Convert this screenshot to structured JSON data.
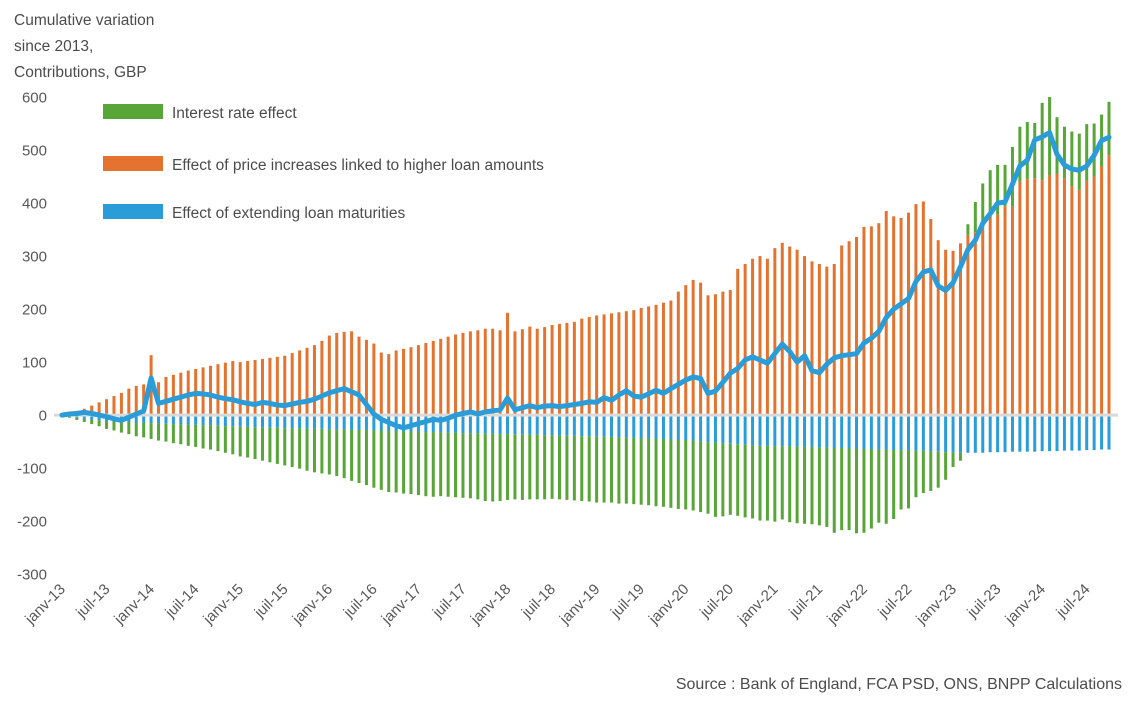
{
  "title_lines": [
    "Cumulative variation",
    "since 2013,",
    "Contributions, GBP"
  ],
  "source": "Source : Bank of England, FCA PSD, ONS, BNPP Calculations",
  "chart_data": {
    "type": "bar+line",
    "stacked": true,
    "x_start": "2013-01",
    "x_end": "2024-10",
    "n_points": 142,
    "x_tick_every": 6,
    "x_tick_labels": [
      "janv-13",
      "juil-13",
      "janv-14",
      "juil-14",
      "janv-15",
      "juil-15",
      "janv-16",
      "juil-16",
      "janv-17",
      "juil-17",
      "janv-18",
      "juil-18",
      "janv-19",
      "juil-19",
      "janv-20",
      "juil-20",
      "janv-21",
      "juil-21",
      "janv-22",
      "juil-22",
      "janv-23",
      "juil-23",
      "janv-24",
      "juil-24"
    ],
    "y_axis": {
      "min": -300,
      "max": 600,
      "step": 100
    },
    "zero_line_color": "#d9d9d9",
    "series": [
      {
        "id": "rate",
        "label": "Interest rate effect",
        "color": "#58a538",
        "type": "bar",
        "values": [
          -1,
          -2,
          -4,
          -6,
          -8,
          -11,
          -14,
          -17,
          -20,
          -23,
          -26,
          -28,
          -30,
          -32,
          -34,
          -36,
          -38,
          -40,
          -42,
          -44,
          -46,
          -48,
          -50,
          -53,
          -56,
          -58,
          -60,
          -63,
          -65,
          -68,
          -70,
          -73,
          -76,
          -79,
          -82,
          -84,
          -85,
          -88,
          -92,
          -96,
          -100,
          -104,
          -108,
          -112,
          -115,
          -116,
          -117,
          -118,
          -120,
          -121,
          -122,
          -121,
          -121,
          -122,
          -122,
          -123,
          -125,
          -127,
          -128,
          -126,
          -124,
          -123,
          -123,
          -122,
          -122,
          -121,
          -120,
          -120,
          -121,
          -122,
          -122,
          -123,
          -124,
          -124,
          -124,
          -125,
          -125,
          -125,
          -125,
          -126,
          -127,
          -128,
          -129,
          -130,
          -131,
          -132,
          -133,
          -135,
          -140,
          -138,
          -134,
          -135,
          -137,
          -138,
          -141,
          -141,
          -142,
          -138,
          -143,
          -144,
          -145,
          -146,
          -147,
          -150,
          -160,
          -155,
          -154,
          -160,
          -158,
          -150,
          -138,
          -140,
          -130,
          -112,
          -110,
          -88,
          -80,
          -75,
          -68,
          -52,
          -27,
          -15,
          20,
          57,
          69,
          82,
          94,
          78,
          113,
          104,
          108,
          104,
          146,
          147,
          107,
          97,
          103,
          106,
          107,
          100,
          97,
          101
        ]
      },
      {
        "id": "price",
        "label": "Effect of price increases linked to higher loan amounts",
        "color": "#e3732f",
        "type": "bar",
        "values": [
          2,
          5,
          8,
          12,
          18,
          24,
          30,
          36,
          42,
          50,
          55,
          58,
          113,
          62,
          72,
          76,
          80,
          84,
          87,
          90,
          93,
          96,
          99,
          102,
          100,
          102,
          104,
          106,
          108,
          110,
          112,
          117,
          122,
          127,
          132,
          140,
          150,
          155,
          157,
          158,
          148,
          142,
          135,
          118,
          115,
          122,
          125,
          128,
          132,
          136,
          140,
          144,
          148,
          152,
          155,
          158,
          160,
          163,
          163,
          160,
          193,
          158,
          162,
          167,
          163,
          166,
          170,
          172,
          174,
          176,
          182,
          185,
          188,
          190,
          192,
          194,
          196,
          198,
          202,
          205,
          208,
          212,
          216,
          233,
          245,
          255,
          250,
          226,
          228,
          233,
          236,
          276,
          285,
          295,
          300,
          295,
          315,
          325,
          318,
          312,
          300,
          290,
          285,
          280,
          285,
          320,
          328,
          336,
          355,
          356,
          362,
          385,
          375,
          372,
          382,
          398,
          403,
          370,
          330,
          312,
          310,
          324,
          340,
          345,
          368,
          380,
          378,
          394,
          393,
          440,
          445,
          447,
          443,
          453,
          455,
          447,
          432,
          425,
          442,
          450,
          470,
          490
        ]
      },
      {
        "id": "maturity",
        "label": "Effect of extending loan maturities",
        "color": "#2a9cd8",
        "type": "bar",
        "values": [
          -1,
          -3,
          -5,
          -7,
          -9,
          -10,
          -12,
          -12,
          -13,
          -13,
          -14,
          -14,
          -15,
          -16,
          -16,
          -17,
          -17,
          -18,
          -18,
          -19,
          -19,
          -20,
          -21,
          -21,
          -22,
          -22,
          -23,
          -23,
          -24,
          -24,
          -25,
          -25,
          -25,
          -26,
          -26,
          -26,
          -27,
          -27,
          -27,
          -28,
          -28,
          -28,
          -29,
          -29,
          -30,
          -30,
          -31,
          -31,
          -31,
          -32,
          -32,
          -32,
          -33,
          -33,
          -34,
          -34,
          -34,
          -35,
          -35,
          -36,
          -36,
          -36,
          -37,
          -37,
          -37,
          -38,
          -38,
          -39,
          -39,
          -39,
          -40,
          -40,
          -41,
          -41,
          -41,
          -42,
          -42,
          -43,
          -44,
          -44,
          -45,
          -45,
          -46,
          -47,
          -47,
          -48,
          -50,
          -51,
          -52,
          -53,
          -54,
          -55,
          -56,
          -57,
          -58,
          -58,
          -59,
          -59,
          -59,
          -60,
          -60,
          -60,
          -61,
          -61,
          -62,
          -62,
          -63,
          -63,
          -64,
          -64,
          -65,
          -65,
          -66,
          -66,
          -66,
          -67,
          -67,
          -68,
          -69,
          -70,
          -71,
          -71,
          -71,
          -71,
          -71,
          -70,
          -70,
          -70,
          -69,
          -69,
          -69,
          -69,
          -68,
          -68,
          -68,
          -67,
          -67,
          -67,
          -66,
          -66,
          -65,
          -65
        ]
      },
      {
        "id": "total",
        "label": "",
        "color": "#2a9cd8",
        "type": "line",
        "values": [
          0,
          2,
          3,
          5,
          3,
          0,
          -3,
          -7,
          -10,
          -4,
          2,
          8,
          70,
          22,
          26,
          30,
          34,
          38,
          41,
          40,
          38,
          34,
          31,
          29,
          25,
          22,
          20,
          24,
          22,
          19,
          18,
          21,
          24,
          26,
          30,
          36,
          42,
          46,
          50,
          44,
          38,
          20,
          2,
          -8,
          -14,
          -20,
          -24,
          -20,
          -16,
          -12,
          -8,
          -10,
          -6,
          0,
          3,
          6,
          2,
          6,
          8,
          10,
          32,
          10,
          14,
          18,
          14,
          17,
          18,
          16,
          18,
          20,
          22,
          25,
          24,
          33,
          28,
          38,
          46,
          36,
          34,
          40,
          47,
          41,
          50,
          58,
          66,
          72,
          69,
          41,
          45,
          62,
          79,
          88,
          104,
          110,
          104,
          98,
          116,
          134,
          120,
          100,
          112,
          84,
          80,
          96,
          108,
          112,
          114,
          116,
          136,
          145,
          158,
          184,
          200,
          210,
          220,
          252,
          270,
          274,
          244,
          235,
          250,
          280,
          312,
          330,
          362,
          380,
          400,
          402,
          436,
          470,
          481,
          519,
          525,
          533,
          492,
          472,
          464,
          462,
          470,
          490,
          518,
          524
        ]
      }
    ]
  }
}
